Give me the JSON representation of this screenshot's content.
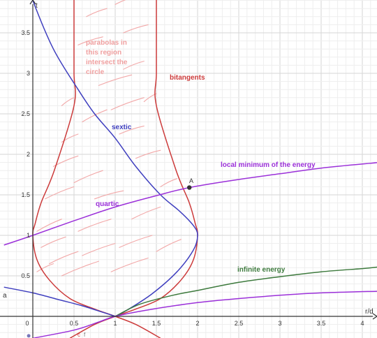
{
  "chart_data": {
    "type": "line",
    "x_axis_label": "r/d",
    "y_axis_label": "t",
    "xlim": [
      -0.35,
      4.2
    ],
    "ylim": [
      -0.27,
      3.93
    ],
    "x_ticks": [
      "0",
      "0.5",
      "1",
      "1.5",
      "2",
      "2.5",
      "3",
      "3.5",
      "4"
    ],
    "y_ticks": [
      "0.5",
      "1",
      "1.5",
      "2",
      "2.5",
      "3",
      "3.5"
    ],
    "grid": true,
    "colors": {
      "red": "#cc3a3a",
      "blue": "#3f3fbf",
      "purple": "#9b30d9",
      "green": "#3d7a3d",
      "pink": "#f2a8a8",
      "point": "#333333"
    },
    "series": [
      {
        "name": "bitangents",
        "color": "#cc3a3a",
        "branches": [
          [
            [
              0.5,
              4.3
            ],
            [
              0.5,
              3.6
            ],
            [
              0.5,
              3.0
            ],
            [
              0.5,
              2.6
            ],
            [
              0.26,
              1.8
            ],
            [
              0.1,
              1.4
            ],
            [
              0.03,
              1.15
            ],
            [
              0.0,
              1.0
            ],
            [
              0.05,
              0.7
            ],
            [
              0.2,
              0.45
            ],
            [
              0.45,
              0.22
            ],
            [
              0.75,
              0.09
            ],
            [
              1.0,
              0.0
            ],
            [
              1.25,
              -0.1
            ],
            [
              1.55,
              -0.27
            ]
          ],
          [
            [
              1.5,
              4.3
            ],
            [
              1.5,
              3.6
            ],
            [
              1.5,
              3.0
            ],
            [
              1.5,
              2.6
            ],
            [
              1.74,
              1.8
            ],
            [
              1.9,
              1.4
            ],
            [
              1.97,
              1.15
            ],
            [
              2.0,
              1.0
            ],
            [
              1.95,
              0.7
            ],
            [
              1.8,
              0.45
            ],
            [
              1.55,
              0.22
            ],
            [
              1.25,
              0.09
            ],
            [
              1.0,
              0.0
            ],
            [
              0.75,
              -0.1
            ],
            [
              0.45,
              -0.27
            ]
          ]
        ]
      },
      {
        "name": "sextic",
        "color": "#3f3fbf",
        "branches": [
          [
            [
              -0.05,
              4.1
            ],
            [
              0.0,
              3.9
            ],
            [
              0.25,
              3.3
            ],
            [
              0.55,
              2.8
            ],
            [
              0.75,
              2.5
            ],
            [
              1.0,
              2.2
            ],
            [
              1.25,
              1.85
            ],
            [
              1.55,
              1.5
            ],
            [
              1.78,
              1.3
            ],
            [
              1.95,
              1.12
            ],
            [
              2.0,
              1.0
            ],
            [
              1.95,
              0.82
            ],
            [
              1.75,
              0.55
            ],
            [
              1.45,
              0.28
            ],
            [
              1.15,
              0.08
            ],
            [
              1.0,
              0.0
            ]
          ]
        ]
      },
      {
        "name": "a",
        "color": "#3f3fbf",
        "branches": [
          [
            [
              -0.35,
              0.36
            ],
            [
              0.0,
              0.29
            ],
            [
              0.3,
              0.21
            ],
            [
              0.6,
              0.13
            ],
            [
              0.85,
              0.05
            ],
            [
              1.0,
              0.0
            ]
          ]
        ]
      },
      {
        "name": "quartic / local minimum of the energy",
        "color": "#9b30d9",
        "branches": [
          [
            [
              -0.35,
              0.88
            ],
            [
              0.0,
              1.0
            ],
            [
              0.5,
              1.18
            ],
            [
              1.0,
              1.35
            ],
            [
              1.5,
              1.49
            ],
            [
              1.9,
              1.59
            ],
            [
              2.5,
              1.69
            ],
            [
              3.0,
              1.76
            ],
            [
              3.5,
              1.83
            ],
            [
              4.2,
              1.9
            ]
          ]
        ]
      },
      {
        "name": "infinite energy",
        "color": "#3d7a3d",
        "branches": [
          [
            [
              1.0,
              0.0
            ],
            [
              1.3,
              0.15
            ],
            [
              1.7,
              0.26
            ],
            [
              2.0,
              0.32
            ],
            [
              2.5,
              0.42
            ],
            [
              3.0,
              0.49
            ],
            [
              3.5,
              0.55
            ],
            [
              4.0,
              0.59
            ],
            [
              4.2,
              0.61
            ]
          ]
        ]
      },
      {
        "name": "lower purple",
        "color": "#9b30d9",
        "branches": [
          [
            [
              0.0,
              -0.27
            ],
            [
              0.5,
              -0.17
            ],
            [
              0.8,
              -0.07
            ],
            [
              1.0,
              0.0
            ],
            [
              1.4,
              0.08
            ],
            [
              2.0,
              0.17
            ],
            [
              2.5,
              0.22
            ],
            [
              3.0,
              0.26
            ],
            [
              3.5,
              0.29
            ],
            [
              4.2,
              0.31
            ]
          ]
        ]
      }
    ],
    "annotations": {
      "region_text": [
        "parabolas in",
        "this region",
        "intersect the",
        "circle"
      ],
      "bitangents": "bitangents",
      "sextic": "sextic",
      "quartic": "quartic",
      "local_min": "local minimum of the energy",
      "infinite_energy": "infinite energy",
      "a": "a",
      "point_A": "A",
      "point_A_coords": [
        1.9,
        1.59
      ],
      "origin_dot": [
        -0.05,
        -0.24
      ],
      "c_label": "c",
      "f_label": "f"
    }
  }
}
